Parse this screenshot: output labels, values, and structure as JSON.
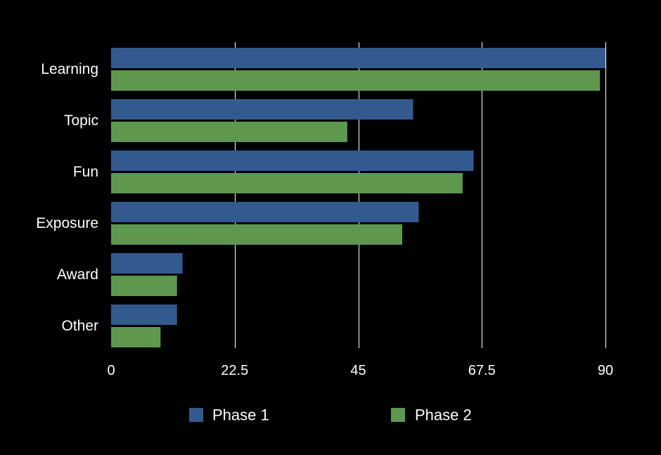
{
  "chart_data": {
    "type": "bar",
    "orientation": "horizontal",
    "title": "",
    "xlabel": "",
    "ylabel": "",
    "categories": [
      "Learning",
      "Topic",
      "Fun",
      "Exposure",
      "Award",
      "Other"
    ],
    "series": [
      {
        "name": "Phase 1",
        "color": "#325a8f",
        "values": [
          90,
          55,
          66,
          56,
          13,
          12
        ]
      },
      {
        "name": "Phase 2",
        "color": "#5e984f",
        "values": [
          89,
          43,
          64,
          53,
          12,
          9
        ]
      }
    ],
    "xlim": [
      0,
      90
    ],
    "xticks": [
      0,
      22.5,
      45,
      67.5,
      90
    ],
    "xtick_labels": [
      "0",
      "22.5",
      "45",
      "67.5",
      "90"
    ],
    "grid": "vertical",
    "legend_position": "bottom",
    "background": "#000000",
    "gridline_color": "#ffffff",
    "text_color": "#ffffff"
  }
}
